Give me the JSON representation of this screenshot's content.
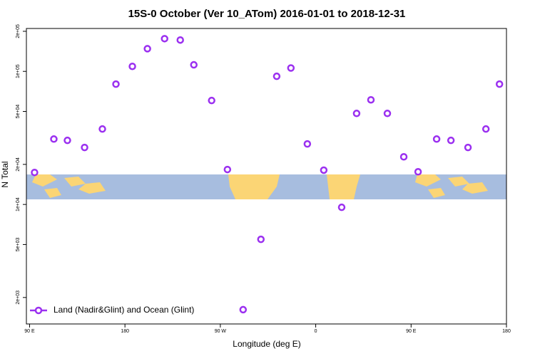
{
  "chart_data": {
    "type": "scatter",
    "title": "15S-0 October (Ver 10_ATom)   2016-01-01 to 2018-12-31",
    "x_label": "Longitude (deg E)",
    "y_label": "N Total",
    "log_y": true,
    "legend": "bottom-left",
    "x": [
      94.7,
      112.9,
      125.7,
      141.9,
      158.7,
      171.5,
      187.0,
      201.2,
      217.4,
      232.2,
      245.0,
      261.8,
      276.7,
      291.5,
      308.3,
      323.2,
      336.6,
      352.1,
      367.6,
      384.5,
      398.6,
      412.1,
      427.6,
      443.1,
      456.6,
      474.1,
      487.6,
      503.7,
      520.6,
      533.4
    ],
    "series": [
      {
        "name": "Land (Nadir&Glint) and Ocean (Glint)",
        "color": "#9b30f0",
        "values": [
          17400,
          31000,
          30300,
          26800,
          36900,
          80200,
          109000,
          148000,
          176000,
          172000,
          112000,
          60400,
          18300,
          1620,
          5470,
          91800,
          106000,
          28500,
          18100,
          9520,
          48300,
          61100,
          48300,
          22800,
          17600,
          31000,
          30300,
          26800,
          36900,
          80200
        ]
      }
    ],
    "xlim": [
      87,
      540
    ],
    "xticks": [
      {
        "value": 90,
        "label": "90 E"
      },
      180,
      {
        "value": 270,
        "label": "90 W"
      },
      {
        "value": 360,
        "label": "0"
      },
      {
        "value": 450,
        "label": "90 E"
      },
      {
        "value": 540,
        "label": "180"
      }
    ],
    "ylim": [
      1265,
      210000
    ],
    "yticks": [
      {
        "value": 2000,
        "label": "2e+03"
      },
      {
        "value": 5000,
        "label": "5e+03"
      },
      {
        "value": 10000,
        "label": "1e+04"
      },
      {
        "value": 20000,
        "label": "2e+04"
      },
      {
        "value": 50000,
        "label": "5e+04"
      },
      {
        "value": 100000,
        "label": "1e+05"
      },
      {
        "value": 200000,
        "label": "2e+05"
      }
    ]
  }
}
